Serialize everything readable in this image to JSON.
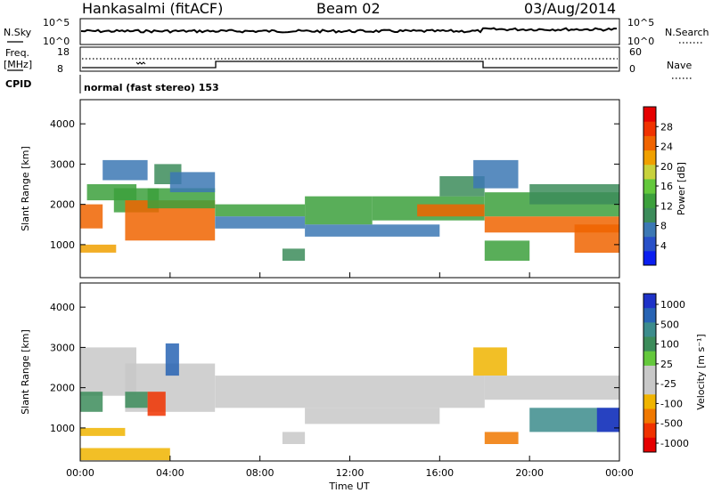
{
  "header": {
    "station": "Hankasalmi (fitACF)",
    "beam": "Beam 02",
    "date": "03/Aug/2014"
  },
  "top_panels": {
    "nsky_label": "N.Sky",
    "nsearch_label": "N.Search",
    "count_ticks": [
      "10^5",
      "10^0"
    ],
    "freq_label": "Freq.",
    "freq_unit": "[MHz]",
    "freq_ticks": [
      "18",
      "8"
    ],
    "nave_label": "Nave",
    "nave_ticks": [
      "60",
      "0"
    ],
    "cpid_label": "CPID",
    "cpid_text": "normal (fast stereo) 153"
  },
  "colors": {
    "power": [
      "#0a1ef0",
      "#2850c8",
      "#3c78b4",
      "#3c8c5a",
      "#3ca03c",
      "#64c83c",
      "#c8d23c",
      "#f0a000",
      "#f06400",
      "#f03200",
      "#e60000"
    ],
    "velocity": [
      "#e60000",
      "#f03200",
      "#f07800",
      "#f0b400",
      "#c8c8c8",
      "#c8c8c8",
      "#64c83c",
      "#3c8c5a",
      "#3c8c8c",
      "#2864b4",
      "#1e32c8"
    ]
  },
  "chart_data": [
    {
      "type": "heatmap",
      "name": "power-panel",
      "ylabel": "Slant Range [km]",
      "ylim": [
        180,
        4600
      ],
      "yticks": [
        1000,
        2000,
        3000,
        4000
      ],
      "xlim": [
        0,
        24
      ],
      "xticks": [
        "00:00",
        "04:00",
        "08:00",
        "12:00",
        "16:00",
        "20:00",
        "00:00"
      ],
      "colorbar": {
        "label": "Power [dB]",
        "range": [
          0,
          32
        ],
        "ticks": [
          4,
          8,
          12,
          16,
          20,
          24,
          28
        ]
      },
      "bands": [
        {
          "t0": 0.0,
          "t1": 1.0,
          "r0": 1400,
          "r1": 2000,
          "v": 26
        },
        {
          "t0": 0.0,
          "t1": 1.6,
          "r0": 800,
          "r1": 1000,
          "v": 22
        },
        {
          "t0": 0.3,
          "t1": 2.5,
          "r0": 2100,
          "r1": 2500,
          "v": 14
        },
        {
          "t0": 1.0,
          "t1": 3.0,
          "r0": 2600,
          "r1": 3100,
          "v": 6
        },
        {
          "t0": 1.5,
          "t1": 3.5,
          "r0": 1800,
          "r1": 2400,
          "v": 12
        },
        {
          "t0": 2.0,
          "t1": 6.0,
          "r0": 1100,
          "r1": 2100,
          "v": 26
        },
        {
          "t0": 3.0,
          "t1": 6.0,
          "r0": 1900,
          "r1": 2400,
          "v": 14
        },
        {
          "t0": 3.3,
          "t1": 4.5,
          "r0": 2500,
          "r1": 3000,
          "v": 10
        },
        {
          "t0": 4.0,
          "t1": 6.0,
          "r0": 2300,
          "r1": 2800,
          "v": 6
        },
        {
          "t0": 6.0,
          "t1": 10.0,
          "r0": 1700,
          "r1": 2000,
          "v": 12
        },
        {
          "t0": 6.0,
          "t1": 10.0,
          "r0": 1400,
          "r1": 1700,
          "v": 6
        },
        {
          "t0": 9.0,
          "t1": 10.0,
          "r0": 600,
          "r1": 900,
          "v": 10
        },
        {
          "t0": 10.0,
          "t1": 13.0,
          "r0": 1500,
          "r1": 2200,
          "v": 12
        },
        {
          "t0": 10.0,
          "t1": 16.0,
          "r0": 1200,
          "r1": 1500,
          "v": 6
        },
        {
          "t0": 13.0,
          "t1": 18.0,
          "r0": 1600,
          "r1": 2200,
          "v": 14
        },
        {
          "t0": 15.0,
          "t1": 18.0,
          "r0": 1700,
          "r1": 2000,
          "v": 26
        },
        {
          "t0": 16.0,
          "t1": 18.0,
          "r0": 2200,
          "r1": 2700,
          "v": 8
        },
        {
          "t0": 17.5,
          "t1": 19.5,
          "r0": 2400,
          "r1": 3100,
          "v": 6
        },
        {
          "t0": 18.0,
          "t1": 24.0,
          "r0": 1300,
          "r1": 1700,
          "v": 26
        },
        {
          "t0": 18.0,
          "t1": 24.0,
          "r0": 1700,
          "r1": 2300,
          "v": 14
        },
        {
          "t0": 18.0,
          "t1": 20.0,
          "r0": 600,
          "r1": 1100,
          "v": 12
        },
        {
          "t0": 20.0,
          "t1": 24.0,
          "r0": 2000,
          "r1": 2500,
          "v": 8
        },
        {
          "t0": 22.0,
          "t1": 24.0,
          "r0": 800,
          "r1": 1500,
          "v": 26
        }
      ]
    },
    {
      "type": "heatmap",
      "name": "velocity-panel",
      "ylabel": "Slant Range [km]",
      "ylim": [
        180,
        4600
      ],
      "yticks": [
        1000,
        2000,
        3000,
        4000
      ],
      "xlim": [
        0,
        24
      ],
      "xticks": [
        "00:00",
        "04:00",
        "08:00",
        "12:00",
        "16:00",
        "20:00",
        "00:00"
      ],
      "xlabel": "Time UT",
      "colorbar": {
        "label": "Velocity [m s⁻¹]",
        "ticks": [
          "1000",
          "500",
          "100",
          "25",
          "-25",
          "-100",
          "-500",
          "-1000"
        ]
      },
      "bands": [
        {
          "t0": 0.0,
          "t1": 2.5,
          "r0": 1800,
          "r1": 3000,
          "v": 5
        },
        {
          "t0": 0.0,
          "t1": 1.0,
          "r0": 1400,
          "r1": 1900,
          "v": 7
        },
        {
          "t0": 0.0,
          "t1": 2.0,
          "r0": 800,
          "r1": 1000,
          "v": 3
        },
        {
          "t0": 0.0,
          "t1": 4.0,
          "r0": 200,
          "r1": 500,
          "v": 3
        },
        {
          "t0": 2.0,
          "t1": 6.0,
          "r0": 1400,
          "r1": 2600,
          "v": 5
        },
        {
          "t0": 2.0,
          "t1": 3.0,
          "r0": 1500,
          "r1": 1900,
          "v": 7
        },
        {
          "t0": 3.0,
          "t1": 3.8,
          "r0": 1300,
          "r1": 1900,
          "v": 1
        },
        {
          "t0": 3.8,
          "t1": 4.4,
          "r0": 2300,
          "r1": 3100,
          "v": 9
        },
        {
          "t0": 6.0,
          "t1": 18.0,
          "r0": 1500,
          "r1": 2300,
          "v": 5
        },
        {
          "t0": 9.0,
          "t1": 10.0,
          "r0": 600,
          "r1": 900,
          "v": 5
        },
        {
          "t0": 10.0,
          "t1": 16.0,
          "r0": 1100,
          "r1": 1500,
          "v": 5
        },
        {
          "t0": 17.5,
          "t1": 19.0,
          "r0": 2300,
          "r1": 3000,
          "v": 3
        },
        {
          "t0": 18.0,
          "t1": 24.0,
          "r0": 1700,
          "r1": 2300,
          "v": 5
        },
        {
          "t0": 18.0,
          "t1": 19.5,
          "r0": 600,
          "r1": 900,
          "v": 2
        },
        {
          "t0": 20.0,
          "t1": 24.0,
          "r0": 900,
          "r1": 1500,
          "v": 8
        },
        {
          "t0": 23.0,
          "t1": 24.0,
          "r0": 900,
          "r1": 1500,
          "v": 10
        }
      ]
    }
  ]
}
